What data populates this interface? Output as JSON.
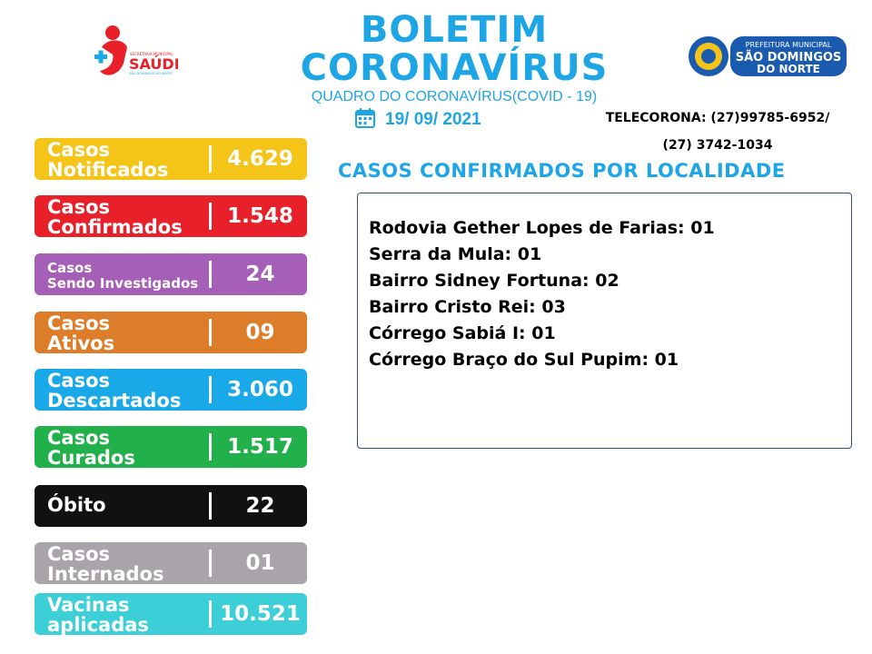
{
  "header": {
    "title_line1": "BOLETIM",
    "title_line2": "CORONAVÍRUS",
    "subtitle": "QUADRO DO CORONAVÍRUS(COVID - 19)",
    "date": "19/ 09/ 2021",
    "telecorona_line1": "TELECORONA: (27)99785-6952/",
    "telecorona_line2": "(27) 3742-1034"
  },
  "logos": {
    "left_top": "SECRETARIA MUNICIPAL",
    "left_main": "SAÚDE",
    "left_sub": "SÃO DOMINGOS DO NORTE",
    "right_top": "PREFEITURA MUNICIPAL",
    "right_main1": "SÃO DOMINGOS",
    "right_main2": "DO NORTE"
  },
  "stats": [
    {
      "label": "Casos\nNotificados",
      "value": "4.629",
      "color": "#f5c419"
    },
    {
      "label": "Casos\nConfirmados",
      "value": "1.548",
      "color": "#e8202a"
    },
    {
      "label": "Casos\nSendo Investigados",
      "value": "24",
      "color": "#a55fb6"
    },
    {
      "label": "Casos\nAtivos",
      "value": "09",
      "color": "#dd7d2a"
    },
    {
      "label": "Casos\nDescartados",
      "value": "3.060",
      "color": "#1aa9e8"
    },
    {
      "label": "Casos\nCurados",
      "value": "1.517",
      "color": "#22b04b"
    },
    {
      "label": "Óbito",
      "value": "22",
      "color": "#111111"
    },
    {
      "label": "Casos\nInternados",
      "value": "01",
      "color": "#a9a4aa"
    },
    {
      "label": "Vacinas\naplicadas",
      "value": "10.521",
      "color": "#3dcfd8"
    }
  ],
  "locations": {
    "title": "CASOS CONFIRMADOS POR LOCALIDADE",
    "items": [
      "Rodovia Gether Lopes de Farias: 01",
      "Serra da Mula: 01",
      "Bairro Sidney Fortuna: 02",
      "Bairro Cristo Rei: 03",
      "Córrego Sabiá I: 01",
      "Córrego Braço do Sul Pupim: 01"
    ]
  },
  "icons": {
    "calendar": "calendar-icon",
    "health_logo": "health-secretary-logo",
    "city_logo": "city-hall-logo"
  }
}
